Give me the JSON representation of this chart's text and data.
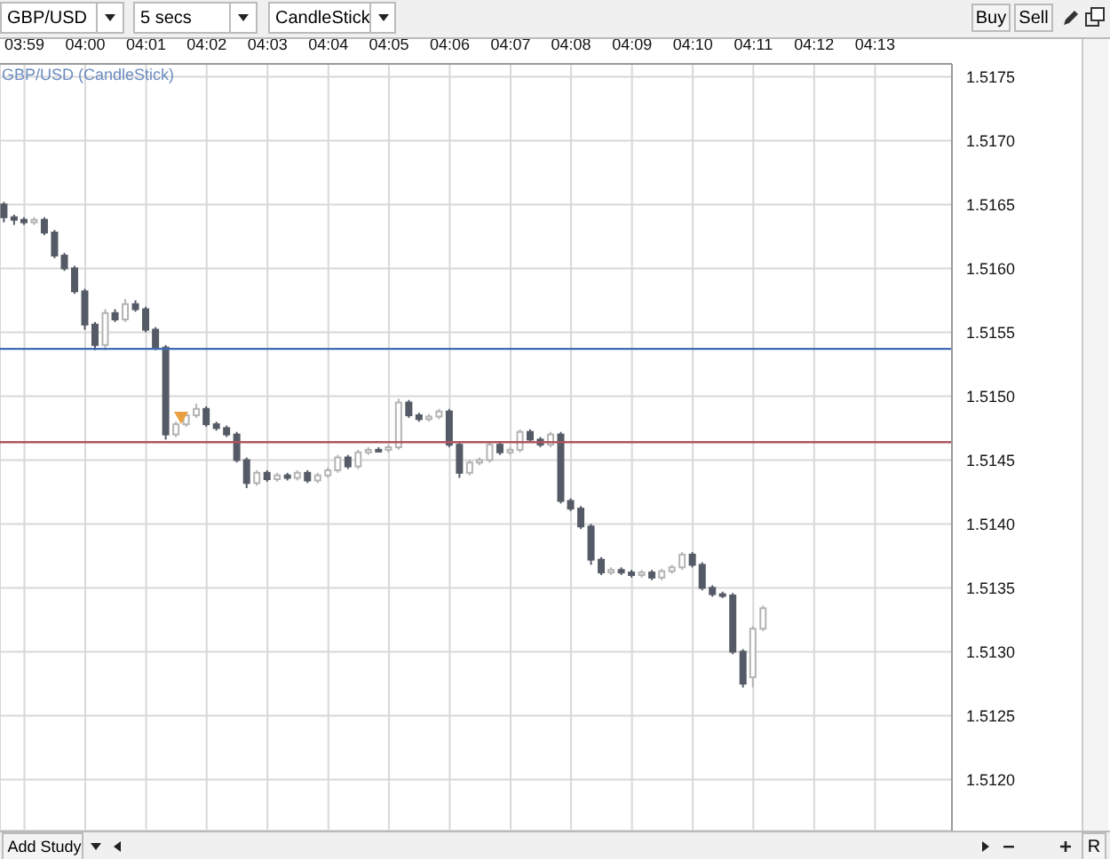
{
  "chart_data": {
    "type": "candlestick",
    "title": "GBP/USD (CandleStick)",
    "annotations": [
      "GBP/USD",
      "5 secs",
      "CandleStick",
      "Buy",
      "Sell",
      "Add Study",
      "R"
    ],
    "x": [
      3.9778,
      3.9806,
      3.9833,
      3.9861,
      3.9889,
      3.9917,
      3.9944,
      3.9972,
      4.0,
      4.0028,
      4.0056,
      4.0083,
      4.0111,
      4.0139,
      4.0167,
      4.0194,
      4.0222,
      4.025,
      4.0278,
      4.0306,
      4.0333,
      4.0361,
      4.0389,
      4.0417,
      4.0444,
      4.0472,
      4.05,
      4.0528,
      4.0556,
      4.0583,
      4.0611,
      4.0639,
      4.0667,
      4.0694,
      4.0722,
      4.075,
      4.0778,
      4.0806,
      4.0833,
      4.0861,
      4.0889,
      4.0917,
      4.0944,
      4.0972,
      4.1,
      4.1028,
      4.1056,
      4.1083,
      4.1111,
      4.1139,
      4.1167,
      4.1194,
      4.1222,
      4.125,
      4.1278,
      4.1306,
      4.1333,
      4.1361,
      4.1389,
      4.1417,
      4.1444,
      4.1472,
      4.15,
      4.1528,
      4.1556,
      4.1583,
      4.1611,
      4.1639,
      4.1667,
      4.1694,
      4.1722,
      4.175,
      4.1778,
      4.1806,
      4.1833,
      4.1861
    ],
    "ohlc": [
      [
        1.5165,
        1.51652,
        1.51636,
        1.5164
      ],
      [
        1.5164,
        1.51642,
        1.51634,
        1.51638
      ],
      [
        1.51638,
        1.5164,
        1.51634,
        1.51636
      ],
      [
        1.51636,
        1.5164,
        1.51634,
        1.51638
      ],
      [
        1.51638,
        1.5164,
        1.51626,
        1.51628
      ],
      [
        1.51628,
        1.5163,
        1.51608,
        1.5161
      ],
      [
        1.5161,
        1.51612,
        1.51598,
        1.516
      ],
      [
        1.516,
        1.51602,
        1.5158,
        1.51582
      ],
      [
        1.51582,
        1.51584,
        1.51552,
        1.51556
      ],
      [
        1.51556,
        1.51558,
        1.51536,
        1.5154
      ],
      [
        1.5154,
        1.51568,
        1.51536,
        1.51565
      ],
      [
        1.51565,
        1.51568,
        1.51558,
        1.5156
      ],
      [
        1.5156,
        1.51576,
        1.51558,
        1.51572
      ],
      [
        1.51572,
        1.51575,
        1.51566,
        1.51568
      ],
      [
        1.51568,
        1.5157,
        1.5155,
        1.51552
      ],
      [
        1.51552,
        1.51554,
        1.51536,
        1.51538
      ],
      [
        1.51538,
        1.5154,
        1.51466,
        1.5147
      ],
      [
        1.5147,
        1.5148,
        1.51468,
        1.51478
      ],
      [
        1.51478,
        1.51487,
        1.51476,
        1.51485
      ],
      [
        1.51485,
        1.51494,
        1.51483,
        1.5149
      ],
      [
        1.5149,
        1.51492,
        1.51476,
        1.51478
      ],
      [
        1.51478,
        1.5148,
        1.51473,
        1.51475
      ],
      [
        1.51475,
        1.51477,
        1.51468,
        1.5147
      ],
      [
        1.5147,
        1.51472,
        1.51448,
        1.5145
      ],
      [
        1.5145,
        1.51452,
        1.51428,
        1.51432
      ],
      [
        1.51432,
        1.51442,
        1.5143,
        1.5144
      ],
      [
        1.5144,
        1.51442,
        1.51433,
        1.51435
      ],
      [
        1.51435,
        1.5144,
        1.51433,
        1.51438
      ],
      [
        1.51438,
        1.5144,
        1.51434,
        1.51436
      ],
      [
        1.51436,
        1.51442,
        1.51434,
        1.5144
      ],
      [
        1.5144,
        1.51442,
        1.51432,
        1.51434
      ],
      [
        1.51434,
        1.5144,
        1.51432,
        1.51438
      ],
      [
        1.51438,
        1.51444,
        1.51436,
        1.51442
      ],
      [
        1.51442,
        1.51454,
        1.5144,
        1.51452
      ],
      [
        1.51452,
        1.51454,
        1.51443,
        1.51445
      ],
      [
        1.51445,
        1.51458,
        1.51443,
        1.51456
      ],
      [
        1.51456,
        1.5146,
        1.51454,
        1.51458
      ],
      [
        1.51458,
        1.5146,
        1.51456,
        1.51458
      ],
      [
        1.51458,
        1.51462,
        1.51456,
        1.5146
      ],
      [
        1.5146,
        1.51498,
        1.51458,
        1.51495
      ],
      [
        1.51495,
        1.51497,
        1.51483,
        1.51485
      ],
      [
        1.51485,
        1.51487,
        1.5148,
        1.51482
      ],
      [
        1.51482,
        1.51486,
        1.5148,
        1.51484
      ],
      [
        1.51484,
        1.5149,
        1.51482,
        1.51488
      ],
      [
        1.51488,
        1.5149,
        1.5146,
        1.51462
      ],
      [
        1.51462,
        1.51464,
        1.51436,
        1.5144
      ],
      [
        1.5144,
        1.5145,
        1.51438,
        1.51448
      ],
      [
        1.51448,
        1.51452,
        1.51446,
        1.5145
      ],
      [
        1.5145,
        1.51464,
        1.51448,
        1.51462
      ],
      [
        1.51462,
        1.51464,
        1.51454,
        1.51456
      ],
      [
        1.51456,
        1.5146,
        1.51454,
        1.51458
      ],
      [
        1.51458,
        1.51474,
        1.51456,
        1.51472
      ],
      [
        1.51472,
        1.51474,
        1.51464,
        1.51466
      ],
      [
        1.51466,
        1.51468,
        1.5146,
        1.51462
      ],
      [
        1.51462,
        1.51472,
        1.5146,
        1.5147
      ],
      [
        1.5147,
        1.51472,
        1.51416,
        1.51418
      ],
      [
        1.51418,
        1.5142,
        1.5141,
        1.51412
      ],
      [
        1.51412,
        1.51414,
        1.51396,
        1.51398
      ],
      [
        1.51398,
        1.514,
        1.51368,
        1.51372
      ],
      [
        1.51372,
        1.51374,
        1.5136,
        1.51362
      ],
      [
        1.51362,
        1.51366,
        1.5136,
        1.51364
      ],
      [
        1.51364,
        1.51366,
        1.5136,
        1.51362
      ],
      [
        1.51362,
        1.51364,
        1.51358,
        1.5136
      ],
      [
        1.5136,
        1.51364,
        1.51358,
        1.51362
      ],
      [
        1.51362,
        1.51364,
        1.51356,
        1.51358
      ],
      [
        1.51358,
        1.51365,
        1.51356,
        1.51363
      ],
      [
        1.51363,
        1.51368,
        1.51361,
        1.51366
      ],
      [
        1.51366,
        1.51378,
        1.51364,
        1.51376
      ],
      [
        1.51376,
        1.51378,
        1.51366,
        1.51368
      ],
      [
        1.51368,
        1.5137,
        1.51348,
        1.5135
      ],
      [
        1.5135,
        1.51352,
        1.51343,
        1.51345
      ],
      [
        1.51345,
        1.51347,
        1.51342,
        1.51344
      ],
      [
        1.51344,
        1.51346,
        1.51298,
        1.513
      ],
      [
        1.513,
        1.51302,
        1.51272,
        1.51275
      ],
      [
        1.5128,
        1.5132,
        1.51272,
        1.51318
      ],
      [
        1.51318,
        1.51336,
        1.51316,
        1.51334
      ]
    ],
    "colors": [
      "#555b66",
      "#555b66",
      "#555b66",
      "#b4b4b4",
      "#555b66",
      "#555b66",
      "#555b66",
      "#555b66",
      "#555b66",
      "#555b66",
      "#b4b4b4",
      "#555b66",
      "#b4b4b4",
      "#555b66",
      "#555b66",
      "#555b66",
      "#555b66",
      "#b4b4b4",
      "#b4b4b4",
      "#b4b4b4",
      "#555b66",
      "#555b66",
      "#555b66",
      "#555b66",
      "#555b66",
      "#b4b4b4",
      "#555b66",
      "#b4b4b4",
      "#555b66",
      "#b4b4b4",
      "#555b66",
      "#b4b4b4",
      "#b4b4b4",
      "#b4b4b4",
      "#555b66",
      "#b4b4b4",
      "#b4b4b4",
      "#555b66",
      "#b4b4b4",
      "#b4b4b4",
      "#555b66",
      "#555b66",
      "#b4b4b4",
      "#b4b4b4",
      "#555b66",
      "#555b66",
      "#b4b4b4",
      "#b4b4b4",
      "#b4b4b4",
      "#555b66",
      "#b4b4b4",
      "#b4b4b4",
      "#555b66",
      "#555b66",
      "#b4b4b4",
      "#555b66",
      "#555b66",
      "#555b66",
      "#555b66",
      "#555b66",
      "#b4b4b4",
      "#555b66",
      "#555b66",
      "#b4b4b4",
      "#555b66",
      "#b4b4b4",
      "#b4b4b4",
      "#b4b4b4",
      "#555b66",
      "#555b66",
      "#555b66",
      "#555b66",
      "#555b66",
      "#555b66",
      "#b4b4b4",
      "#b4b4b4"
    ],
    "xlim": [
      3.9766,
      4.2378
    ],
    "xticks": [
      {
        "value": 3.9833,
        "label": "03:59"
      },
      {
        "value": 4.0,
        "label": "04:00"
      },
      {
        "value": 4.0167,
        "label": "04:01"
      },
      {
        "value": 4.0333,
        "label": "04:02"
      },
      {
        "value": 4.05,
        "label": "04:03"
      },
      {
        "value": 4.0667,
        "label": "04:04"
      },
      {
        "value": 4.0833,
        "label": "04:05"
      },
      {
        "value": 4.1,
        "label": "04:06"
      },
      {
        "value": 4.1167,
        "label": "04:07"
      },
      {
        "value": 4.1333,
        "label": "04:08"
      },
      {
        "value": 4.15,
        "label": "04:09"
      },
      {
        "value": 4.1667,
        "label": "04:10"
      },
      {
        "value": 4.1833,
        "label": "04:11"
      },
      {
        "value": 4.2,
        "label": "04:12"
      },
      {
        "value": 4.2167,
        "label": "04:13"
      }
    ],
    "ylim": [
      1.5116,
      1.5176
    ],
    "yticks": [
      {
        "value": 1.512,
        "label": "1.5120"
      },
      1.5125,
      {
        "value": 1.513,
        "label": "1.5130"
      },
      1.5135,
      {
        "value": 1.514,
        "label": "1.5140"
      },
      1.5145,
      {
        "value": 1.515,
        "label": "1.5150"
      },
      1.5155,
      {
        "value": 1.516,
        "label": "1.5160"
      },
      1.5165,
      {
        "value": 1.517,
        "label": "1.5170"
      },
      1.5175
    ],
    "grid": true,
    "ref_lines": [
      {
        "axis": "y",
        "value": 1.51537,
        "color": "#3d6bb3"
      },
      {
        "axis": "y",
        "value": 1.51464,
        "color": "#b05560"
      }
    ]
  }
}
